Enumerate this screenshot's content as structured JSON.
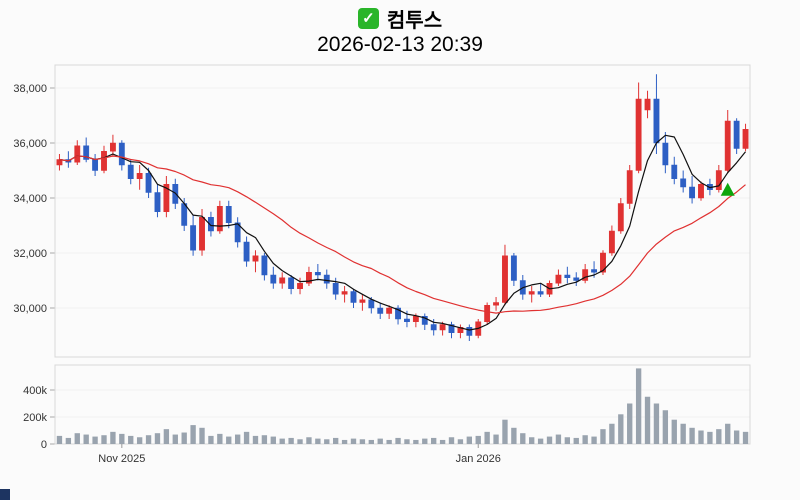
{
  "header": {
    "title": "컴투스",
    "datetime": "2026-02-13 20:39",
    "check_icon": "check-icon",
    "check_icon_color": "#2ab52a"
  },
  "chart_data": {
    "type": "candlestick+volume",
    "title": "컴투스",
    "subtitle": "2026-02-13 20:39",
    "legend_position": "none",
    "grid": "faint-horizontal",
    "y_axis": {
      "ticks": [
        30000,
        32000,
        34000,
        36000,
        38000
      ],
      "labels": [
        "30,000",
        "32,000",
        "34,000",
        "36,000",
        "38,000"
      ],
      "range": [
        28600,
        38800
      ]
    },
    "volume_axis": {
      "ticks": [
        0,
        200000,
        400000
      ],
      "labels": [
        "0",
        "200k",
        "400k"
      ],
      "max": 560000
    },
    "x_ticks": [
      {
        "index": 7,
        "label": "Nov 2025"
      },
      {
        "index": 47,
        "label": "Jan 2026"
      }
    ],
    "colors": {
      "up": "#e03232",
      "down": "#2d5fc4",
      "volume": "#99a3ae",
      "frame": "#d8d8d8",
      "axis_text": "#333333",
      "marker_green": "#0da60d"
    },
    "overlays": [
      {
        "name": "ma-fast",
        "type": "sma",
        "window": 5,
        "color": "#111111"
      },
      {
        "name": "ma-slow",
        "type": "sma",
        "window": 20,
        "color": "#e03131"
      }
    ],
    "marker": {
      "type": "triangle-up",
      "index": 75,
      "price": 34300,
      "color": "#0da60d"
    },
    "series": {
      "candles": [
        [
          35200,
          35600,
          35000,
          35400,
          60000
        ],
        [
          35400,
          35700,
          35100,
          35300,
          45000
        ],
        [
          35300,
          36100,
          35200,
          35900,
          80000
        ],
        [
          35900,
          36200,
          35300,
          35400,
          70000
        ],
        [
          35400,
          35600,
          34800,
          35000,
          55000
        ],
        [
          35000,
          35900,
          34900,
          35700,
          65000
        ],
        [
          35700,
          36300,
          35500,
          36000,
          90000
        ],
        [
          36000,
          36100,
          35000,
          35200,
          75000
        ],
        [
          35200,
          35400,
          34500,
          34700,
          60000
        ],
        [
          34700,
          35200,
          34300,
          34900,
          50000
        ],
        [
          34900,
          35100,
          34000,
          34200,
          65000
        ],
        [
          34200,
          34500,
          33300,
          33500,
          80000
        ],
        [
          33500,
          34800,
          33300,
          34500,
          110000
        ],
        [
          34500,
          34700,
          33600,
          33800,
          70000
        ],
        [
          33800,
          34000,
          32800,
          33000,
          85000
        ],
        [
          33000,
          33400,
          31900,
          32100,
          140000
        ],
        [
          32100,
          33600,
          31900,
          33300,
          120000
        ],
        [
          33300,
          33500,
          32600,
          32800,
          60000
        ],
        [
          32800,
          33900,
          32700,
          33700,
          75000
        ],
        [
          33700,
          33900,
          32900,
          33100,
          55000
        ],
        [
          33100,
          33300,
          32200,
          32400,
          70000
        ],
        [
          32400,
          32600,
          31500,
          31700,
          90000
        ],
        [
          31700,
          32100,
          31300,
          31900,
          60000
        ],
        [
          31900,
          32000,
          31000,
          31200,
          65000
        ],
        [
          31200,
          31500,
          30700,
          30900,
          55000
        ],
        [
          30900,
          31300,
          30700,
          31100,
          40000
        ],
        [
          31100,
          31200,
          30500,
          30700,
          45000
        ],
        [
          30700,
          31100,
          30500,
          30900,
          35000
        ],
        [
          30900,
          31500,
          30800,
          31300,
          50000
        ],
        [
          31300,
          31600,
          31000,
          31200,
          40000
        ],
        [
          31200,
          31400,
          30700,
          30900,
          35000
        ],
        [
          30900,
          31100,
          30300,
          30500,
          45000
        ],
        [
          30500,
          30800,
          30200,
          30600,
          30000
        ],
        [
          30600,
          30700,
          30000,
          30200,
          40000
        ],
        [
          30200,
          30500,
          29900,
          30300,
          35000
        ],
        [
          30300,
          30400,
          29800,
          30000,
          30000
        ],
        [
          30000,
          30200,
          29600,
          29800,
          40000
        ],
        [
          29800,
          30100,
          29600,
          30000,
          30000
        ],
        [
          30000,
          30100,
          29400,
          29600,
          45000
        ],
        [
          29600,
          29900,
          29300,
          29500,
          35000
        ],
        [
          29500,
          29800,
          29300,
          29700,
          30000
        ],
        [
          29700,
          29800,
          29200,
          29400,
          40000
        ],
        [
          29400,
          29600,
          29000,
          29200,
          45000
        ],
        [
          29200,
          29500,
          29000,
          29400,
          30000
        ],
        [
          29400,
          29500,
          28900,
          29100,
          50000
        ],
        [
          29100,
          29400,
          28900,
          29300,
          35000
        ],
        [
          29300,
          29400,
          28800,
          29000,
          55000
        ],
        [
          29000,
          29600,
          28900,
          29500,
          60000
        ],
        [
          29500,
          30200,
          29400,
          30100,
          90000
        ],
        [
          30100,
          30400,
          29900,
          30200,
          70000
        ],
        [
          30200,
          32300,
          30100,
          31900,
          180000
        ],
        [
          31900,
          32000,
          30800,
          31000,
          120000
        ],
        [
          31000,
          31200,
          30300,
          30500,
          80000
        ],
        [
          30500,
          30800,
          30200,
          30600,
          50000
        ],
        [
          30600,
          30900,
          30400,
          30500,
          40000
        ],
        [
          30500,
          31000,
          30400,
          30900,
          55000
        ],
        [
          30900,
          31400,
          30800,
          31200,
          70000
        ],
        [
          31200,
          31500,
          30900,
          31100,
          50000
        ],
        [
          31100,
          31300,
          30800,
          31000,
          45000
        ],
        [
          31000,
          31600,
          30900,
          31400,
          65000
        ],
        [
          31400,
          31700,
          31100,
          31300,
          55000
        ],
        [
          31300,
          32100,
          31200,
          32000,
          110000
        ],
        [
          32000,
          33000,
          31900,
          32800,
          150000
        ],
        [
          32800,
          34000,
          32700,
          33800,
          220000
        ],
        [
          33800,
          35200,
          33600,
          35000,
          300000
        ],
        [
          35000,
          38200,
          34900,
          37600,
          560000
        ],
        [
          37200,
          37900,
          36900,
          37600,
          350000
        ],
        [
          37600,
          38500,
          35600,
          36000,
          300000
        ],
        [
          36000,
          36400,
          34900,
          35200,
          250000
        ],
        [
          35200,
          35500,
          34500,
          34700,
          180000
        ],
        [
          34700,
          35000,
          34200,
          34400,
          150000
        ],
        [
          34400,
          34800,
          33800,
          34000,
          120000
        ],
        [
          34000,
          34600,
          33900,
          34500,
          100000
        ],
        [
          34500,
          34700,
          34100,
          34300,
          90000
        ],
        [
          34300,
          35200,
          34200,
          35000,
          110000
        ],
        [
          35000,
          37200,
          34900,
          36800,
          150000
        ],
        [
          36800,
          36900,
          35600,
          35800,
          100000
        ],
        [
          35800,
          36700,
          35700,
          36500,
          90000
        ]
      ]
    }
  }
}
